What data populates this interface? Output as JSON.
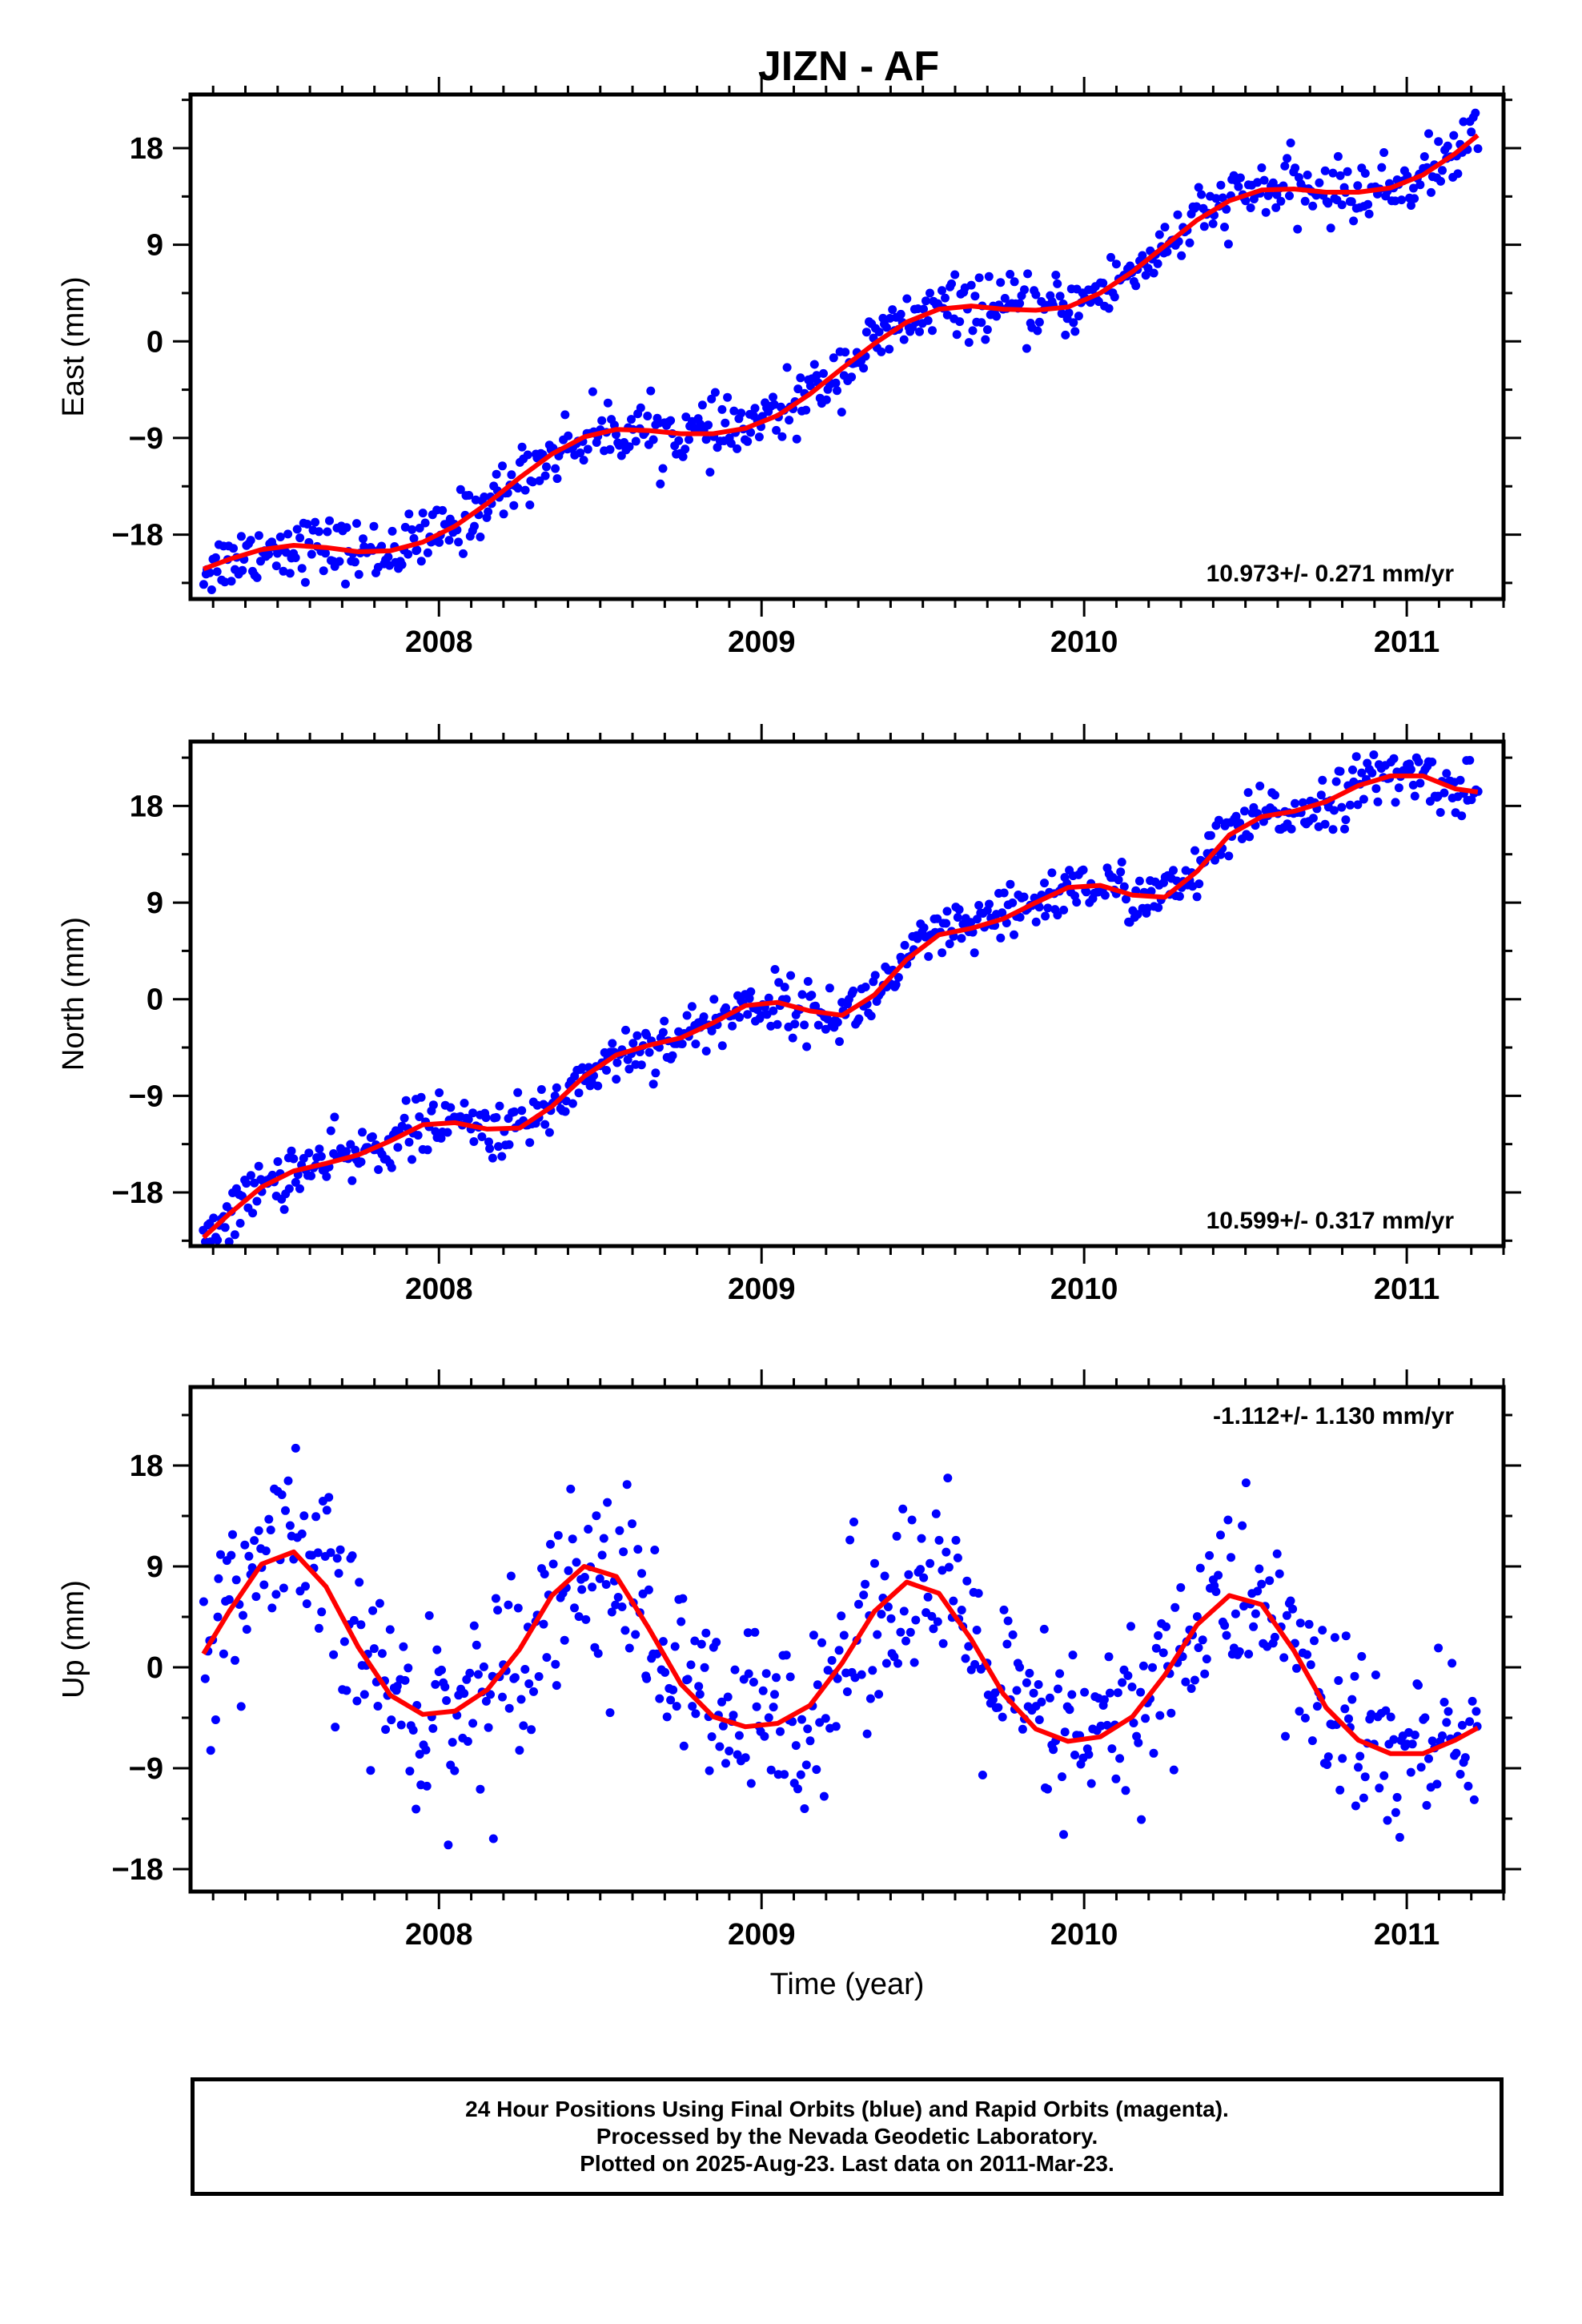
{
  "title": "JIZN - AF",
  "xlabel": "Time (year)",
  "footer": {
    "line1": "24 Hour Positions Using Final Orbits (blue) and Rapid Orbits (magenta).",
    "line2": "Processed by the Nevada Geodetic Laboratory.",
    "line3": "Plotted on 2025-Aug-23. Last data on 2011-Mar-23."
  },
  "colors": {
    "points": "#0000ff",
    "fit": "#ff0000",
    "axes": "#000000"
  },
  "chart_data": [
    {
      "type": "scatter",
      "component": "east",
      "ylabel": "East (mm)",
      "rate_label": "10.973+/- 0.271 mm/yr",
      "rate_placement": "bottom-right",
      "xlim": [
        2007.23,
        2011.3
      ],
      "ylim": [
        -24,
        23
      ],
      "x_ticks": [
        2008,
        2009,
        2010,
        2011
      ],
      "y_ticks": [
        -18,
        -9,
        0,
        9,
        18
      ],
      "series": [
        {
          "kind": "fit",
          "x": [
            2007.27,
            2007.35,
            2007.45,
            2007.55,
            2007.65,
            2007.75,
            2007.85,
            2007.95,
            2008.05,
            2008.15,
            2008.25,
            2008.35,
            2008.45,
            2008.55,
            2008.65,
            2008.75,
            2008.85,
            2008.95,
            2009.05,
            2009.15,
            2009.25,
            2009.35,
            2009.45,
            2009.55,
            2009.65,
            2009.75,
            2009.85,
            2009.95,
            2010.05,
            2010.15,
            2010.25,
            2010.35,
            2010.45,
            2010.55,
            2010.65,
            2010.75,
            2010.85,
            2010.95,
            2011.05,
            2011.15,
            2011.22
          ],
          "y": [
            -21.2,
            -20.3,
            -19.4,
            -19.0,
            -19.2,
            -19.6,
            -19.5,
            -18.7,
            -17.2,
            -15.1,
            -12.7,
            -10.5,
            -8.9,
            -8.2,
            -8.3,
            -8.6,
            -8.6,
            -8.1,
            -6.9,
            -4.9,
            -2.5,
            -0.2,
            1.8,
            3.0,
            3.3,
            3.0,
            2.9,
            3.2,
            4.5,
            6.5,
            8.9,
            11.3,
            13.1,
            14.1,
            14.2,
            13.9,
            13.9,
            14.3,
            15.5,
            17.5,
            19.2
          ]
        }
      ],
      "scatter_noise_mm": 1.4
    },
    {
      "type": "scatter",
      "component": "north",
      "ylabel": "North (mm)",
      "rate_label": "10.599+/- 0.317 mm/yr",
      "rate_placement": "bottom-right",
      "xlim": [
        2007.23,
        2011.3
      ],
      "ylim": [
        -23,
        24
      ],
      "x_ticks": [
        2008,
        2009,
        2010,
        2011
      ],
      "y_ticks": [
        -18,
        -9,
        0,
        9,
        18
      ],
      "series": [
        {
          "kind": "fit",
          "x": [
            2007.27,
            2007.35,
            2007.45,
            2007.55,
            2007.65,
            2007.75,
            2007.85,
            2007.95,
            2008.05,
            2008.15,
            2008.25,
            2008.35,
            2008.45,
            2008.55,
            2008.65,
            2008.75,
            2008.85,
            2008.95,
            2009.05,
            2009.15,
            2009.25,
            2009.35,
            2009.45,
            2009.55,
            2009.65,
            2009.75,
            2009.85,
            2009.95,
            2010.05,
            2010.15,
            2010.25,
            2010.35,
            2010.45,
            2010.55,
            2010.65,
            2010.75,
            2010.85,
            2010.95,
            2011.05,
            2011.15,
            2011.22
          ],
          "y": [
            -22.2,
            -20.0,
            -17.5,
            -16.0,
            -15.3,
            -14.5,
            -13.2,
            -11.7,
            -11.5,
            -12.1,
            -12.0,
            -10.0,
            -7.2,
            -5.2,
            -4.3,
            -3.6,
            -2.2,
            -0.6,
            -0.3,
            -1.1,
            -1.5,
            0.4,
            3.7,
            6.0,
            6.6,
            7.5,
            9.0,
            10.4,
            10.6,
            9.7,
            9.5,
            11.9,
            15.3,
            17.0,
            17.5,
            18.4,
            19.9,
            20.8,
            20.8,
            19.6,
            19.3
          ]
        }
      ],
      "scatter_noise_mm": 1.3
    },
    {
      "type": "scatter",
      "component": "up",
      "ylabel": "Up (mm)",
      "rate_label": "-1.112+/- 1.130 mm/yr",
      "rate_placement": "top-right",
      "xlim": [
        2007.23,
        2011.3
      ],
      "ylim": [
        -20,
        25
      ],
      "x_ticks": [
        2008,
        2009,
        2010,
        2011
      ],
      "y_ticks": [
        -18,
        -9,
        0,
        9,
        18
      ],
      "series": [
        {
          "kind": "fit",
          "x": [
            2007.27,
            2007.35,
            2007.45,
            2007.55,
            2007.65,
            2007.75,
            2007.85,
            2007.95,
            2008.05,
            2008.15,
            2008.25,
            2008.35,
            2008.45,
            2008.55,
            2008.65,
            2008.75,
            2008.85,
            2008.95,
            2009.05,
            2009.15,
            2009.25,
            2009.35,
            2009.45,
            2009.55,
            2009.65,
            2009.75,
            2009.85,
            2009.95,
            2010.05,
            2010.15,
            2010.25,
            2010.35,
            2010.45,
            2010.55,
            2010.65,
            2010.75,
            2010.85,
            2010.95,
            2011.05,
            2011.15,
            2011.22
          ],
          "y": [
            1.2,
            5.0,
            9.2,
            10.3,
            7.2,
            1.8,
            -2.5,
            -4.2,
            -3.9,
            -2.0,
            1.6,
            6.4,
            9.0,
            8.1,
            3.5,
            -1.5,
            -4.4,
            -5.3,
            -5.0,
            -3.4,
            0.4,
            5.0,
            7.6,
            6.6,
            2.5,
            -2.4,
            -5.5,
            -6.6,
            -6.2,
            -4.4,
            -0.7,
            3.8,
            6.4,
            5.6,
            1.5,
            -3.6,
            -6.5,
            -7.7,
            -7.7,
            -6.5,
            -5.4
          ]
        }
      ],
      "scatter_noise_mm": 4.2
    }
  ]
}
